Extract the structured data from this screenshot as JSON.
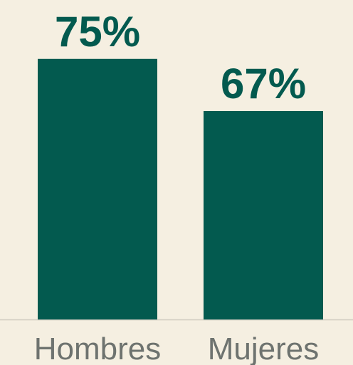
{
  "chart_data": {
    "type": "bar",
    "categories": [
      "Hombres",
      "Mujeres"
    ],
    "values": [
      75,
      67
    ],
    "value_labels": [
      "75%",
      "67%"
    ],
    "color": "#035a4f",
    "ylim": [
      35,
      80
    ]
  }
}
